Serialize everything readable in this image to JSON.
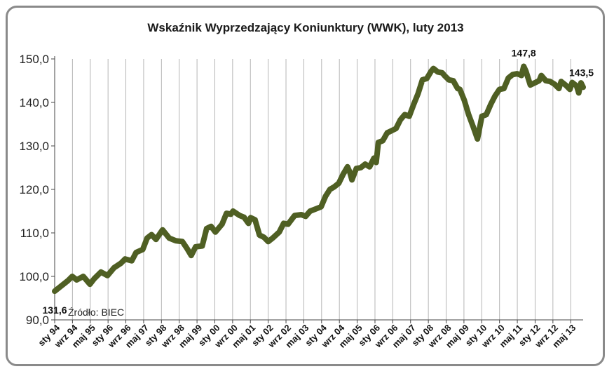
{
  "chart_data": {
    "type": "line",
    "title": "Wskaźnik Wyprzedzający Koniunktury (WWK), luty 2013",
    "xlabel": "",
    "ylabel": "",
    "ylim": [
      90,
      150
    ],
    "y_ticks": [
      "90,0",
      "100,0",
      "110,0",
      "120,0",
      "130,0",
      "140,0",
      "150,0"
    ],
    "x_tick_labels": [
      "sty 94",
      "wrz 94",
      "maj 95",
      "sty 96",
      "wrz 96",
      "maj 97",
      "sty 98",
      "wrz 98",
      "maj 99",
      "sty 00",
      "wrz 00",
      "maj 01",
      "sty 02",
      "wrz 02",
      "maj 03",
      "sty 04",
      "wrz 04",
      "maj 05",
      "sty 06",
      "wrz 06",
      "maj 07",
      "sty 08",
      "wrz 08",
      "maj 09",
      "sty 10",
      "wrz 10",
      "maj 11",
      "sty 12",
      "wrz 12",
      "maj 13"
    ],
    "grid": "vertical",
    "line_color": "#4f5f23",
    "source": "Źródło: BIEC",
    "annotations": [
      {
        "label": "147,8",
        "date": "2007-09",
        "value": 147.8,
        "position": "above"
      },
      {
        "label": "131,6",
        "date": "2009-03",
        "value": 131.6,
        "position": "below"
      },
      {
        "label": "143,5",
        "date": "2013-02",
        "value": 143.5,
        "position": "right"
      }
    ],
    "series": [
      {
        "points": [
          [
            "1994-01",
            96.6
          ],
          [
            "1994-04",
            97.8
          ],
          [
            "1994-07",
            99.0
          ],
          [
            "1994-09",
            100.0
          ],
          [
            "1994-11",
            99.2
          ],
          [
            "1995-02",
            100.0
          ],
          [
            "1995-05",
            98.2
          ],
          [
            "1995-07",
            99.5
          ],
          [
            "1995-10",
            101.0
          ],
          [
            "1996-01",
            100.2
          ],
          [
            "1996-04",
            102.0
          ],
          [
            "1996-07",
            103.0
          ],
          [
            "1996-09",
            104.0
          ],
          [
            "1996-12",
            103.6
          ],
          [
            "1997-02",
            105.5
          ],
          [
            "1997-05",
            106.2
          ],
          [
            "1997-07",
            108.8
          ],
          [
            "1997-09",
            109.6
          ],
          [
            "1997-11",
            108.5
          ],
          [
            "1998-02",
            110.7
          ],
          [
            "1998-05",
            108.8
          ],
          [
            "1998-08",
            108.2
          ],
          [
            "1998-11",
            108.0
          ],
          [
            "1999-01",
            106.5
          ],
          [
            "1999-03",
            104.8
          ],
          [
            "1999-05",
            106.8
          ],
          [
            "1999-08",
            107.0
          ],
          [
            "1999-10",
            111.0
          ],
          [
            "1999-12",
            111.5
          ],
          [
            "2000-02",
            110.2
          ],
          [
            "2000-05",
            112.0
          ],
          [
            "2000-07",
            114.5
          ],
          [
            "2000-09",
            114.3
          ],
          [
            "2000-10",
            115.0
          ],
          [
            "2001-01",
            114.0
          ],
          [
            "2001-03",
            113.6
          ],
          [
            "2001-05",
            112.2
          ],
          [
            "2001-06",
            113.5
          ],
          [
            "2001-08",
            113.0
          ],
          [
            "2001-10",
            109.5
          ],
          [
            "2001-12",
            109.0
          ],
          [
            "2002-02",
            108.0
          ],
          [
            "2002-04",
            108.8
          ],
          [
            "2002-07",
            110.2
          ],
          [
            "2002-09",
            112.2
          ],
          [
            "2002-11",
            112.0
          ],
          [
            "2003-02",
            114.0
          ],
          [
            "2003-05",
            114.2
          ],
          [
            "2003-07",
            113.8
          ],
          [
            "2003-09",
            115.0
          ],
          [
            "2003-12",
            115.6
          ],
          [
            "2004-02",
            116.0
          ],
          [
            "2004-04",
            118.4
          ],
          [
            "2004-06",
            120.0
          ],
          [
            "2004-08",
            120.6
          ],
          [
            "2004-10",
            121.4
          ],
          [
            "2004-12",
            123.5
          ],
          [
            "2005-02",
            125.2
          ],
          [
            "2005-03",
            124.0
          ],
          [
            "2005-04",
            122.2
          ],
          [
            "2005-06",
            124.8
          ],
          [
            "2005-08",
            125.0
          ],
          [
            "2005-10",
            125.8
          ],
          [
            "2005-12",
            125.2
          ],
          [
            "2006-02",
            127.2
          ],
          [
            "2006-03",
            126.2
          ],
          [
            "2006-04",
            130.8
          ],
          [
            "2006-06",
            131.2
          ],
          [
            "2006-08",
            133.0
          ],
          [
            "2006-10",
            133.5
          ],
          [
            "2006-12",
            134.0
          ],
          [
            "2007-02",
            136.0
          ],
          [
            "2007-04",
            137.2
          ],
          [
            "2007-06",
            136.8
          ],
          [
            "2007-08",
            139.5
          ],
          [
            "2007-10",
            142.0
          ],
          [
            "2007-12",
            145.2
          ],
          [
            "2008-02",
            145.5
          ],
          [
            "2008-04",
            147.2
          ],
          [
            "2008-05",
            147.8
          ],
          [
            "2008-07",
            147.0
          ],
          [
            "2008-09",
            146.8
          ],
          [
            "2008-10",
            146.2
          ],
          [
            "2008-12",
            145.2
          ],
          [
            "2009-02",
            145.0
          ],
          [
            "2009-04",
            143.2
          ],
          [
            "2009-05",
            143.0
          ],
          [
            "2009-07",
            140.5
          ],
          [
            "2009-09",
            137.2
          ],
          [
            "2009-11",
            134.5
          ],
          [
            "2010-01",
            131.6
          ],
          [
            "2010-03",
            136.8
          ],
          [
            "2010-05",
            137.2
          ],
          [
            "2010-07",
            139.5
          ],
          [
            "2010-09",
            141.5
          ],
          [
            "2010-11",
            143.0
          ],
          [
            "2011-01",
            143.2
          ],
          [
            "2011-03",
            145.6
          ],
          [
            "2011-05",
            146.4
          ],
          [
            "2011-07",
            146.6
          ],
          [
            "2011-09",
            146.2
          ],
          [
            "2011-10",
            148.3
          ],
          [
            "2011-11",
            147.2
          ],
          [
            "2012-01",
            144.0
          ],
          [
            "2012-03",
            144.5
          ],
          [
            "2012-05",
            145.0
          ],
          [
            "2012-06",
            146.2
          ],
          [
            "2012-08",
            145.0
          ],
          [
            "2012-10",
            144.8
          ],
          [
            "2012-12",
            144.2
          ],
          [
            "2013-02",
            143.2
          ],
          [
            "2013-03",
            144.8
          ],
          [
            "2013-05",
            144.0
          ],
          [
            "2013-07",
            143.0
          ],
          [
            "2013-08",
            144.6
          ],
          [
            "2013-10",
            143.8
          ],
          [
            "2013-11",
            142.2
          ],
          [
            "2013-12",
            144.5
          ],
          [
            "2014-01",
            143.5
          ]
        ]
      }
    ]
  }
}
